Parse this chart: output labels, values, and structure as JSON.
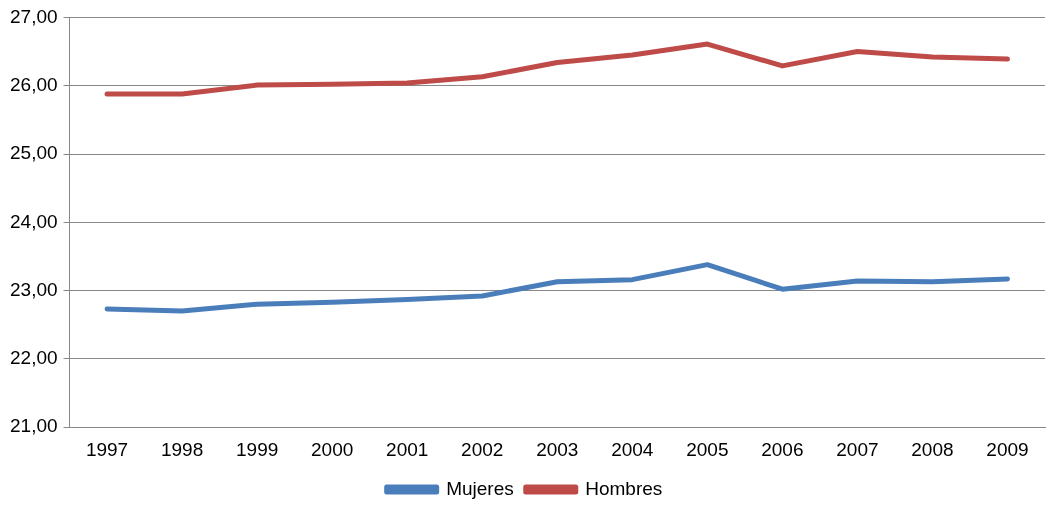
{
  "chart_data": {
    "type": "line",
    "categories": [
      "1997",
      "1998",
      "1999",
      "2000",
      "2001",
      "2002",
      "2003",
      "2004",
      "2005",
      "2006",
      "2007",
      "2008",
      "2009"
    ],
    "series": [
      {
        "name": "Mujeres",
        "color": "#4a7ebb",
        "values": [
          22.73,
          22.7,
          22.8,
          22.83,
          22.87,
          22.92,
          23.13,
          23.16,
          23.38,
          23.02,
          23.14,
          23.13,
          23.17
        ]
      },
      {
        "name": "Hombres",
        "color": "#be4b48",
        "values": [
          25.88,
          25.88,
          26.01,
          26.02,
          26.04,
          26.13,
          26.34,
          26.45,
          26.61,
          26.29,
          26.5,
          26.42,
          26.39
        ]
      }
    ],
    "ylim": [
      21,
      27
    ],
    "yticks": [
      {
        "value": 21,
        "label": "21,00"
      },
      {
        "value": 22,
        "label": "22,00"
      },
      {
        "value": 23,
        "label": "23,00"
      },
      {
        "value": 24,
        "label": "24,00"
      },
      {
        "value": 25,
        "label": "25,00"
      },
      {
        "value": 26,
        "label": "26,00"
      },
      {
        "value": 27,
        "label": "27,00"
      }
    ],
    "grid": "y",
    "legend": "bottom",
    "marker": "none",
    "line_style": "solid"
  }
}
